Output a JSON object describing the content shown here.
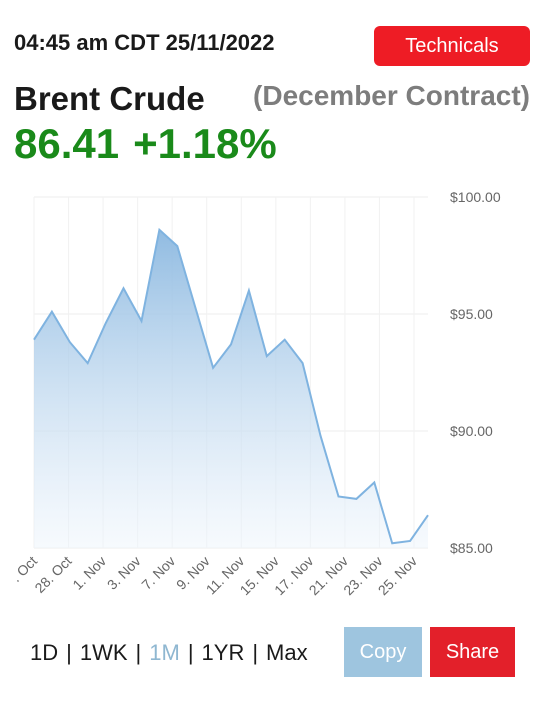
{
  "header": {
    "timestamp": "04:45 am CDT 25/11/2022",
    "technicals_label": "Technicals"
  },
  "instrument": {
    "name": "Brent Crude",
    "contract": "(December Contract)",
    "price": "86.41",
    "change": "+1.18%"
  },
  "colors": {
    "accent_red": "#ee1c25",
    "positive_green": "#1a8a1a",
    "line_blue": "#7fb3e0",
    "copy_blue": "#9ec5df"
  },
  "ranges": {
    "items": [
      "1D",
      "1WK",
      "1M",
      "1YR",
      "Max"
    ],
    "active": "1M"
  },
  "actions": {
    "copy_label": "Copy",
    "share_label": "Share"
  },
  "chart_data": {
    "type": "area",
    "x_tick_labels": [
      ". Oct",
      "28. Oct",
      "1. Nov",
      "3. Nov",
      "7. Nov",
      "9. Nov",
      "11. Nov",
      "15. Nov",
      "17. Nov",
      "21. Nov",
      "23. Nov",
      "25. Nov"
    ],
    "y_tick_labels": [
      "$100.00",
      "$95.00",
      "$90.00",
      "$85.00"
    ],
    "ylim": [
      85,
      100
    ],
    "grid": true,
    "series": [
      {
        "values": [
          93.9,
          95.1,
          93.8,
          92.9,
          94.6,
          96.1,
          94.7,
          98.6,
          97.9,
          95.3,
          92.7,
          93.7,
          96.0,
          93.2,
          93.9,
          92.9,
          89.8,
          87.2,
          87.1,
          87.8,
          85.2,
          85.3,
          86.4
        ]
      }
    ]
  }
}
